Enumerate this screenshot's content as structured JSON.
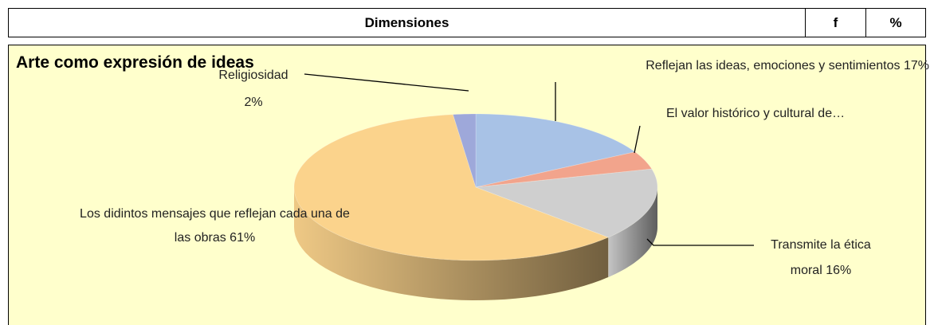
{
  "table": {
    "header": [
      "Dimensiones",
      "f",
      "%"
    ]
  },
  "chart_data": {
    "type": "pie",
    "title": "Arte como expresión de ideas",
    "categories": [
      "Reflejan las ideas, emociones y sentimientos",
      "El valor histórico y cultural de…",
      "Transmite la ética moral",
      "Los didintos mensajes que reflejan cada una de las obras",
      "Religiosidad"
    ],
    "values": [
      17,
      4,
      16,
      61,
      2
    ],
    "value_labels": [
      "17%",
      null,
      "16%",
      "61%",
      "2%"
    ],
    "colors": [
      "#a8c2e6",
      "#f2a48c",
      "#cfcfcf",
      "#fbd38c",
      "#9ea8da"
    ]
  }
}
